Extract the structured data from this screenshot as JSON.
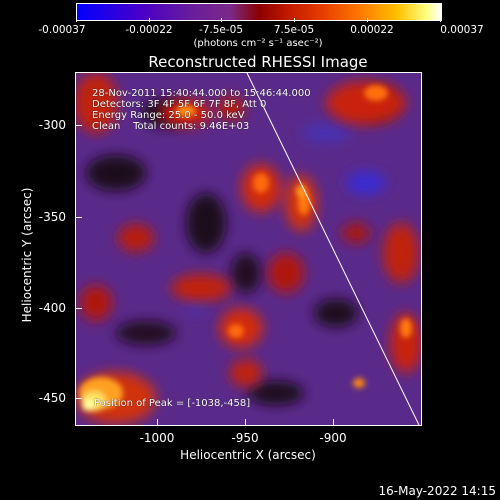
{
  "colorbar": {
    "ticks": [
      "-0.00037",
      "-0.00022",
      "-7.5e-05",
      "7.5e-05",
      "0.00022",
      "0.00037"
    ],
    "units": "(photons cm⁻² s⁻¹ asec⁻²)"
  },
  "title": "Reconstructed RHESSI Image",
  "info": {
    "line1": "28-Nov-2011 15:40:44.000 to 15:46:44.000",
    "line2": "Detectors: 3F 4F 5F 6F 7F 8F, Att 0",
    "line3": "Energy Range: 25.0 - 50.0 keV",
    "line4": "Clean    Total counts: 9.46E+03",
    "peak": "Position of Peak = [-1038,-458]"
  },
  "axes": {
    "xlabel": "Heliocentric X (arcsec)",
    "ylabel": "Heliocentric Y (arcsec)",
    "xticks": [
      "-1000",
      "-950",
      "-900"
    ],
    "yticks": [
      "-300",
      "-350",
      "-400",
      "-450"
    ]
  },
  "timestamp": "16-May-2022 14:15"
}
